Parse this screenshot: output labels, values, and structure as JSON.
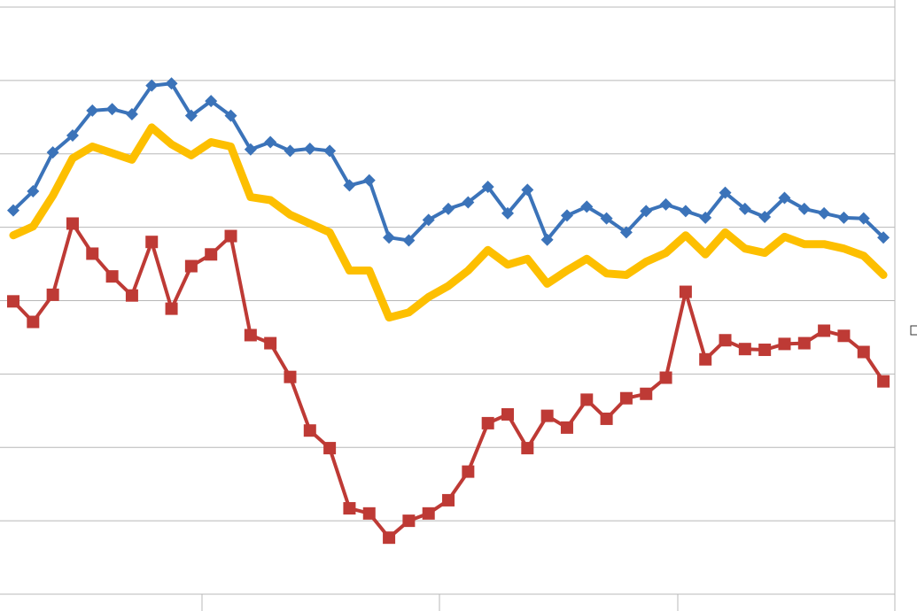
{
  "chart_data": {
    "type": "line",
    "categories": [
      null,
      null,
      null,
      null,
      null,
      null,
      null,
      null,
      null,
      null,
      null,
      null,
      null,
      null,
      null,
      null,
      null,
      null,
      null,
      null,
      null,
      null,
      null,
      null,
      null,
      null,
      null,
      null,
      null,
      null,
      null,
      null,
      null,
      null,
      null,
      null,
      null,
      null,
      null,
      null,
      null,
      null,
      null,
      null,
      null
    ],
    "ylim": [
      0,
      8
    ],
    "yticks": [
      0,
      1,
      2,
      3,
      4,
      5,
      6,
      7,
      8
    ],
    "grid": true,
    "series": [
      {
        "color": "#be3a35",
        "marker": "square",
        "values": [
          3.99,
          3.71,
          4.08,
          5.05,
          4.64,
          4.33,
          4.07,
          4.8,
          3.89,
          4.47,
          4.63,
          4.88,
          3.53,
          3.42,
          2.96,
          2.23,
          1.99,
          1.17,
          1.1,
          0.77,
          1.0,
          1.1,
          1.28,
          1.67,
          2.33,
          2.45,
          1.99,
          2.43,
          2.27,
          2.65,
          2.39,
          2.67,
          2.73,
          2.95,
          4.12,
          3.2,
          3.46,
          3.34,
          3.33,
          3.41,
          3.42,
          3.59,
          3.52,
          3.3,
          2.9
        ]
      },
      {
        "color": "#fdbf00",
        "marker": "none",
        "values": [
          4.89,
          5.01,
          5.43,
          5.94,
          6.1,
          6.01,
          5.92,
          6.36,
          6.13,
          5.98,
          6.16,
          6.1,
          5.41,
          5.37,
          5.17,
          5.05,
          4.93,
          4.41,
          4.41,
          3.77,
          3.84,
          4.05,
          4.2,
          4.41,
          4.69,
          4.49,
          4.57,
          4.23,
          4.41,
          4.57,
          4.37,
          4.35,
          4.53,
          4.65,
          4.89,
          4.63,
          4.93,
          4.71,
          4.65,
          4.87,
          4.77,
          4.77,
          4.71,
          4.61,
          4.35
        ]
      },
      {
        "color": "#3b73b9",
        "marker": "diamond",
        "values": [
          5.23,
          5.49,
          6.02,
          6.25,
          6.59,
          6.61,
          6.54,
          6.93,
          6.96,
          6.52,
          6.72,
          6.52,
          6.06,
          6.16,
          6.04,
          6.07,
          6.04,
          5.57,
          5.64,
          4.86,
          4.82,
          5.1,
          5.25,
          5.34,
          5.55,
          5.19,
          5.51,
          4.83,
          5.16,
          5.28,
          5.12,
          4.93,
          5.22,
          5.31,
          5.22,
          5.13,
          5.47,
          5.25,
          5.14,
          5.4,
          5.25,
          5.19,
          5.13,
          5.12,
          4.86
        ]
      }
    ]
  }
}
